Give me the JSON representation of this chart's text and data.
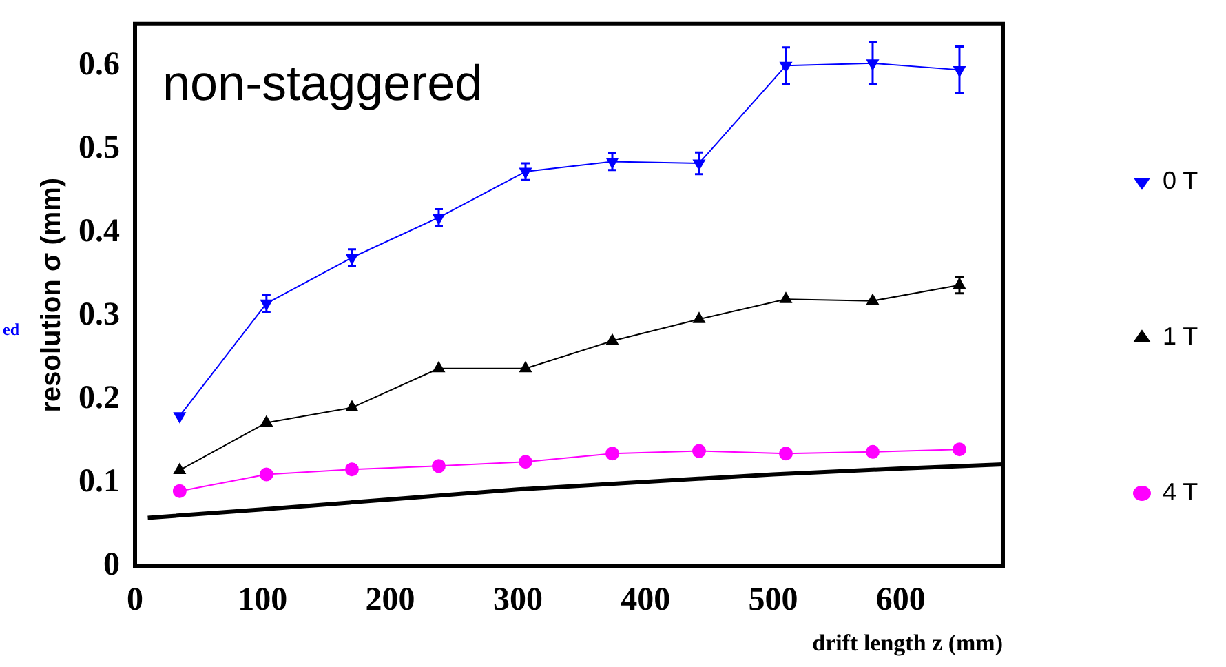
{
  "chart_data": {
    "type": "line",
    "xlabel": "drift length z (mm)",
    "ylabel": "resolution σ (mm)",
    "annotations": [
      "non-staggered",
      "ed"
    ],
    "x": [
      35,
      103,
      170,
      238,
      306,
      374,
      442,
      510,
      578,
      646
    ],
    "xlim": [
      0,
      680
    ],
    "xticks": [
      0,
      100,
      200,
      300,
      400,
      500,
      600
    ],
    "ylim": [
      0,
      0.65
    ],
    "yticks": [
      0,
      0.1,
      0.2,
      0.3,
      0.4,
      0.5,
      0.6
    ],
    "grid": false,
    "legend": "right",
    "series": [
      {
        "name": "0 T",
        "color": "#0000ff",
        "marker": "triangle",
        "values": [
          0.18,
          0.315,
          0.37,
          0.418,
          0.473,
          0.485,
          0.483,
          0.6,
          0.603,
          0.595
        ],
        "errors": [
          null,
          0.01,
          0.01,
          0.01,
          0.01,
          0.01,
          0.013,
          0.022,
          0.025,
          0.028
        ]
      },
      {
        "name": "1 T",
        "color": "#000000",
        "marker": "triangle",
        "values": [
          0.115,
          0.172,
          0.19,
          0.237,
          0.237,
          0.27,
          0.296,
          0.32,
          0.318,
          0.337
        ],
        "errors": [
          null,
          null,
          null,
          null,
          null,
          null,
          null,
          null,
          null,
          0.01
        ]
      },
      {
        "name": "4 T",
        "color": "#ff00ff",
        "marker": "circle",
        "values": [
          0.09,
          0.11,
          0.116,
          0.12,
          0.125,
          0.135,
          0.138,
          0.135,
          0.137,
          0.14
        ]
      },
      {
        "color": "#000000",
        "marker": "none",
        "x": [
          10,
          100,
          200,
          300,
          400,
          500,
          600,
          680
        ],
        "values": [
          0.058,
          0.068,
          0.08,
          0.092,
          0.101,
          0.11,
          0.117,
          0.122
        ]
      }
    ]
  }
}
